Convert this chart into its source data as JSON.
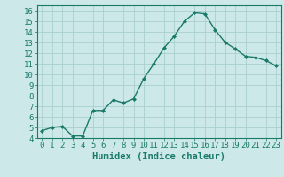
{
  "x": [
    0,
    1,
    2,
    3,
    4,
    5,
    6,
    7,
    8,
    9,
    10,
    11,
    12,
    13,
    14,
    15,
    16,
    17,
    18,
    19,
    20,
    21,
    22,
    23
  ],
  "y": [
    4.7,
    5.0,
    5.1,
    4.2,
    4.2,
    6.6,
    6.6,
    7.6,
    7.3,
    7.7,
    9.6,
    11.0,
    12.5,
    13.6,
    15.0,
    15.8,
    15.7,
    14.2,
    13.0,
    12.4,
    11.7,
    11.6,
    11.3,
    10.8
  ],
  "line_color": "#1a7a6a",
  "marker": "D",
  "markersize": 2.0,
  "linewidth": 1.0,
  "bg_color": "#cce8e8",
  "grid_color": "#aacfcf",
  "xlabel": "Humidex (Indice chaleur)",
  "ylim": [
    4,
    16.5
  ],
  "xlim": [
    -0.5,
    23.5
  ],
  "yticks": [
    4,
    5,
    6,
    7,
    8,
    9,
    10,
    11,
    12,
    13,
    14,
    15,
    16
  ],
  "xticks": [
    0,
    1,
    2,
    3,
    4,
    5,
    6,
    7,
    8,
    9,
    10,
    11,
    12,
    13,
    14,
    15,
    16,
    17,
    18,
    19,
    20,
    21,
    22,
    23
  ],
  "tick_color": "#1a7a6a",
  "label_color": "#1a7a6a",
  "xlabel_fontsize": 7.5,
  "tick_fontsize": 6.5
}
